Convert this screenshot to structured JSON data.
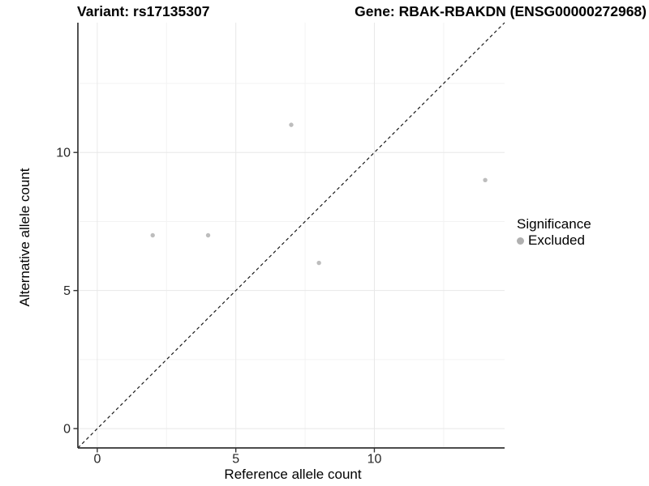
{
  "header": {
    "variant_title": "Variant: rs17135307",
    "gene_title": "Gene: RBAK-RBAKDN (ENSG00000272968)"
  },
  "chart_data": {
    "type": "scatter",
    "xlabel": "Reference allele count",
    "ylabel": "Alternative allele count",
    "xlim": [
      -0.7,
      14.7
    ],
    "ylim": [
      -0.7,
      14.7
    ],
    "x_ticks": [
      0,
      5,
      10
    ],
    "y_ticks": [
      0,
      5,
      10
    ],
    "minor_ticks": [
      2.5,
      7.5,
      12.5
    ],
    "grid": true,
    "identity_line": {
      "style": "dashed",
      "from": [
        -0.7,
        -0.7
      ],
      "to": [
        14.7,
        14.7
      ],
      "color": "#1a1a1a"
    },
    "series": [
      {
        "name": "Excluded",
        "color": "#bdbdbd",
        "points": [
          [
            2,
            7
          ],
          [
            4,
            7
          ],
          [
            7,
            11
          ],
          [
            8,
            6
          ],
          [
            14,
            9
          ]
        ]
      }
    ],
    "legend": {
      "title": "Significance",
      "position": "right",
      "items": [
        {
          "label": "Excluded",
          "color": "#b0b0b0"
        }
      ]
    },
    "colors": {
      "major_grid": "#e8e8e8",
      "minor_grid": "#f3f3f3",
      "axis_line": "#333333",
      "tick_label": "#262626",
      "point": "#bdbdbd"
    }
  }
}
